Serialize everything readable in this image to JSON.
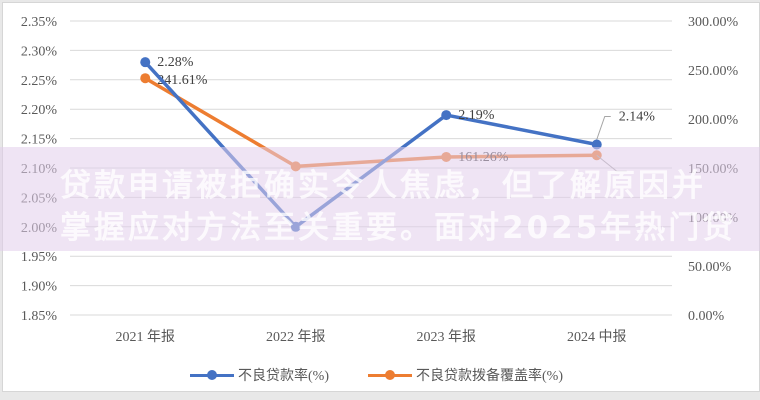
{
  "chart_data": {
    "type": "line",
    "title": "",
    "categories": [
      "2021 年报",
      "2022 年报",
      "2023 年报",
      "2024 中报"
    ],
    "series": [
      {
        "name": "不良贷款率(%)",
        "axis": "left",
        "color": "#4472c4",
        "values": [
          2.28,
          2.0,
          2.19,
          2.14
        ],
        "labels": [
          "2.28%",
          "",
          "2.19%",
          "2.14%"
        ]
      },
      {
        "name": "不良贷款拨备覆盖率(%)",
        "axis": "right",
        "color": "#ed7d31",
        "values": [
          241.61,
          151.67,
          161.26,
          163.0
        ],
        "labels": [
          "241.61%",
          "",
          "161.26%",
          ""
        ]
      }
    ],
    "left_axis": {
      "ticks": [
        "2.35%",
        "2.30%",
        "2.25%",
        "2.20%",
        "2.15%",
        "2.10%",
        "2.05%",
        "2.00%",
        "1.95%",
        "1.90%",
        "1.85%"
      ],
      "ylim": [
        1.85,
        2.35
      ]
    },
    "right_axis": {
      "ticks": [
        "300.00%",
        "250.00%",
        "200.00%",
        "150.00%",
        "100.00%",
        "50.00%",
        "0.00%"
      ],
      "ylim": [
        0,
        300
      ]
    },
    "grid": true,
    "legend_position": "bottom"
  },
  "overlay": {
    "line1": "贷款申请被拒确实令人焦虑，但了解原因并",
    "line2": "掌握应对方法至关重要。面对2025年热门贷"
  },
  "legend": {
    "item1": "不良贷款率(%)",
    "item2": "不良贷款拨备覆盖率(%)"
  }
}
